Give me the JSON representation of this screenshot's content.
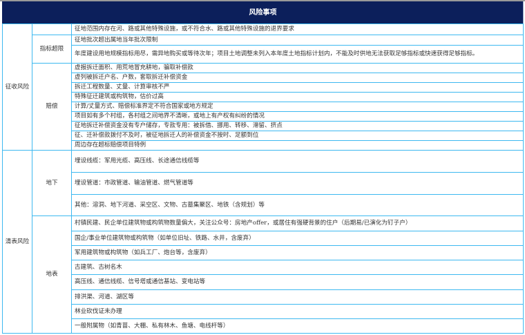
{
  "header": {
    "title": "风险事项"
  },
  "sections": [
    {
      "category": "征收风险",
      "groups": [
        {
          "label": "",
          "items": [
            "征地范围内存在河、路或其他特殊设施，或不符合水、路或其他特殊设施的退界要求"
          ]
        },
        {
          "label": "指标超限",
          "items": [
            "征地批次超出属地当年批次限制",
            "年度建设用地规模指标用尽，需异地购买或等待次年；项目土地调整未列入本年度土地指标计划内，不能及时供地无法获取足够指标或快速获得足够指标。"
          ]
        },
        {
          "label": "赔偿",
          "items": [
            "虚报拆迁面积、用荒地冒充耕地，骗取补偿款",
            "虚列被拆迁户名、户数，套取拆迁补偿资金",
            "拆迁工程数量、丈量、计算审核不严",
            "特殊征迁建筑或构筑物，估价过高",
            "计算/丈量方式、赔偿标准界定不符合国家或地方规定",
            "项目如有多个村组，各村组之间地界不清晰，或地上有产权有纠纷的情况",
            "征地拆迁补偿资金没有专户储存，专款专用：被拆借、挪用、转移、滞留、挤点",
            "征、迁补偿款拨付不及时，被征地拆迁人的补偿资金不按时、足额到位",
            "周边存在超标赔偿项目特例"
          ]
        }
      ]
    },
    {
      "category": "清表风险",
      "groups": [
        {
          "label": "地下",
          "items": [
            "埋设线缆：军用光缆、高压线、长途通信线缆等",
            "埋设管道：市政管道、输油管道、燃气管道等",
            "其他：溶洞、地下河道、采空区、文物、古墓集聚区、地铁（含规划）等"
          ]
        },
        {
          "label": "地表",
          "items": [
            "村镇民建、民企单位建筑物或构筑物数量偏大，关注公众号：房地产offer，或居住有强硬背景的住户（后期易/已演化为钉子户）",
            "国企/事业单位建筑物或构筑物（如单位旧址、铁路、水井，含废弃）",
            "军用建筑物或构筑物（如兵工厂、炮台等，含废弃）",
            "古建筑、古树名木",
            "高压线、通信线缆、信号塔或通信基站、变电站等",
            "排洪渠、河道、湖区等",
            "林业砍伐证未办理",
            "一般附属物（如青苗、大棚、私有林木、鱼塘、电线杆等）"
          ]
        }
      ]
    }
  ]
}
